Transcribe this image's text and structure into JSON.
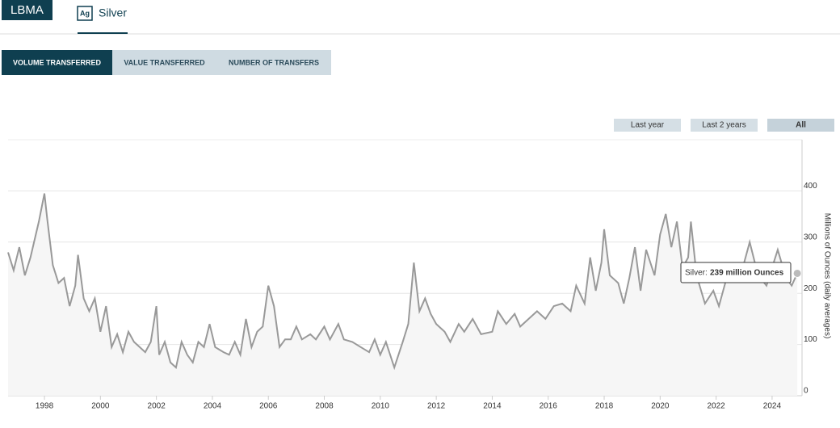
{
  "header": {
    "logo": "LBMA",
    "icon": "Ag",
    "title": "Silver"
  },
  "tabs": [
    "VOLUME TRANSFERRED",
    "VALUE TRANSFERRED",
    "NUMBER OF TRANSFERS"
  ],
  "range_buttons": [
    "Last year",
    "Last 2 years",
    "All"
  ],
  "tooltip": {
    "label": "Silver:",
    "value": "239 million Ounces"
  },
  "chart_data": {
    "type": "line",
    "y_axis_label": "Millions of Ounces (daily averages)",
    "x": [
      1996.7,
      1996.9,
      1997.1,
      1997.3,
      1997.5,
      1997.8,
      1998.0,
      1998.1,
      1998.3,
      1998.5,
      1998.7,
      1998.9,
      1999.1,
      1999.2,
      1999.4,
      1999.6,
      1999.8,
      2000.0,
      2000.2,
      2000.4,
      2000.6,
      2000.8,
      2001.0,
      2001.2,
      2001.4,
      2001.6,
      2001.8,
      2002.0,
      2002.1,
      2002.3,
      2002.5,
      2002.7,
      2002.9,
      2003.1,
      2003.3,
      2003.5,
      2003.7,
      2003.9,
      2004.1,
      2004.4,
      2004.6,
      2004.8,
      2005.0,
      2005.2,
      2005.4,
      2005.6,
      2005.8,
      2006.0,
      2006.2,
      2006.4,
      2006.6,
      2006.8,
      2007.0,
      2007.2,
      2007.5,
      2007.7,
      2008.0,
      2008.2,
      2008.5,
      2008.7,
      2009.0,
      2009.3,
      2009.6,
      2009.8,
      2010.0,
      2010.2,
      2010.5,
      2010.8,
      2011.0,
      2011.2,
      2011.4,
      2011.6,
      2011.8,
      2012.0,
      2012.3,
      2012.5,
      2012.8,
      2013.0,
      2013.3,
      2013.6,
      2014.0,
      2014.2,
      2014.5,
      2014.8,
      2015.0,
      2015.3,
      2015.6,
      2015.9,
      2016.2,
      2016.5,
      2016.8,
      2017.0,
      2017.3,
      2017.5,
      2017.7,
      2017.9,
      2018.0,
      2018.2,
      2018.5,
      2018.7,
      2018.9,
      2019.1,
      2019.3,
      2019.5,
      2019.8,
      2020.0,
      2020.2,
      2020.4,
      2020.6,
      2020.8,
      2021.0,
      2021.1,
      2021.3,
      2021.6,
      2021.9,
      2022.1,
      2022.4,
      2022.7,
      2023.0,
      2023.2,
      2023.5,
      2023.8,
      2024.0,
      2024.2,
      2024.5,
      2024.7,
      2024.9
    ],
    "series": [
      {
        "name": "Silver",
        "color": "#999999",
        "values": [
          280,
          245,
          290,
          235,
          270,
          340,
          395,
          345,
          255,
          220,
          230,
          175,
          215,
          275,
          190,
          165,
          190,
          125,
          175,
          95,
          120,
          85,
          125,
          105,
          95,
          85,
          105,
          175,
          80,
          105,
          65,
          55,
          105,
          80,
          65,
          105,
          95,
          140,
          95,
          85,
          80,
          105,
          80,
          150,
          95,
          125,
          135,
          215,
          175,
          95,
          110,
          110,
          135,
          110,
          120,
          110,
          135,
          110,
          140,
          110,
          105,
          95,
          85,
          110,
          80,
          105,
          55,
          105,
          140,
          260,
          165,
          190,
          160,
          140,
          125,
          105,
          140,
          125,
          150,
          120,
          125,
          165,
          140,
          160,
          135,
          150,
          165,
          150,
          175,
          180,
          165,
          215,
          180,
          270,
          205,
          260,
          325,
          235,
          220,
          180,
          230,
          290,
          205,
          285,
          235,
          315,
          355,
          290,
          340,
          250,
          270,
          340,
          235,
          180,
          205,
          175,
          235,
          250,
          260,
          300,
          235,
          215,
          250,
          285,
          230,
          215,
          239
        ]
      }
    ],
    "xlim": [
      1996.7,
      2025.07
    ],
    "ylim": [
      0,
      500
    ],
    "xticks": [
      1998,
      2000,
      2002,
      2004,
      2006,
      2008,
      2010,
      2012,
      2014,
      2016,
      2018,
      2020,
      2022,
      2024
    ],
    "yticks": [
      0,
      100,
      200,
      300,
      400
    ],
    "grid": true
  }
}
